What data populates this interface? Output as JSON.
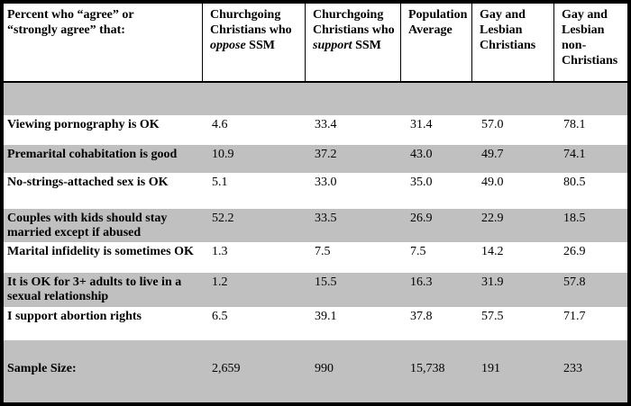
{
  "colors": {
    "stripe_gray": "#c0c0c0",
    "frame_black": "#000000",
    "text_black": "#000000",
    "background_white": "#ffffff"
  },
  "table": {
    "corner_header": "Percent who “agree” or “strongly agree” that:",
    "column_headers": [
      {
        "pre": "Churchgoing Christians who ",
        "italic": "oppose",
        "post": " SSM"
      },
      {
        "pre": "Churchgoing Christians who ",
        "italic": "support",
        "post": " SSM"
      },
      {
        "pre": "Population Average",
        "italic": "",
        "post": ""
      },
      {
        "pre": "Gay and Lesbian Christians",
        "italic": "",
        "post": ""
      },
      {
        "pre": "Gay and Lesbian non-Christians",
        "italic": "",
        "post": ""
      }
    ],
    "rows": [
      {
        "label": "Viewing pornography is OK",
        "values": [
          "4.6",
          "33.4",
          "31.4",
          "57.0",
          "78.1"
        ]
      },
      {
        "label": "Premarital cohabitation is good",
        "values": [
          "10.9",
          "37.2",
          "43.0",
          "49.7",
          "74.1"
        ]
      },
      {
        "label": "No-strings-attached sex is OK",
        "values": [
          "5.1",
          "33.0",
          "35.0",
          "49.0",
          "80.5"
        ]
      },
      {
        "label": "Couples with kids should stay married except if abused",
        "values": [
          "52.2",
          "33.5",
          "26.9",
          "22.9",
          "18.5"
        ]
      },
      {
        "label": "Marital infidelity is sometimes OK",
        "values": [
          "1.3",
          "7.5",
          "7.5",
          "14.2",
          "26.9"
        ]
      },
      {
        "label": "It is OK for 3+ adults to live in a sexual relationship",
        "values": [
          "1.2",
          "15.5",
          "16.3",
          "31.9",
          "57.8"
        ]
      },
      {
        "label": "I support abortion rights",
        "values": [
          "6.5",
          "39.1",
          "37.8",
          "57.5",
          "71.7"
        ]
      }
    ],
    "sample_size": {
      "label": "Sample Size:",
      "values": [
        "2,659",
        "990",
        "15,738",
        "191",
        "233"
      ]
    }
  }
}
